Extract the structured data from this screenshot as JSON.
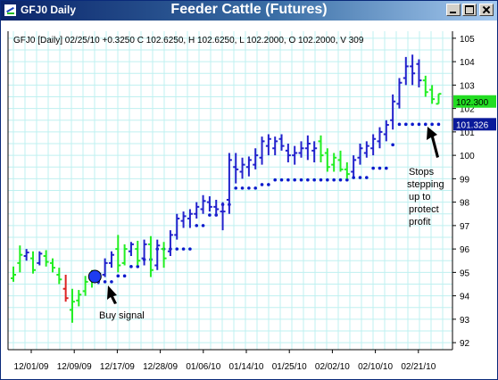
{
  "window": {
    "title": "GFJ0 Daily",
    "chart_title": "Feeder Cattle (Futures)",
    "controls": [
      "minimize",
      "maximize",
      "close"
    ]
  },
  "info_line": "GFJ0 [Daily] 02/25/10  +0.3250 C 102.6250, H 102.6250, L 102.2000, O 102.2000, V 309",
  "price_tags": [
    {
      "label": "102.300",
      "value": 102.3,
      "bg": "#22dd22",
      "fg": "#000000"
    },
    {
      "label": "101.326",
      "value": 101.326,
      "bg": "#0a1a9a",
      "fg": "#ffffff"
    }
  ],
  "annotations": {
    "buy_signal": "Buy signal",
    "stops": [
      "Stops",
      "stepping",
      "up to",
      "protect",
      "profit"
    ]
  },
  "colors": {
    "up": "#2222cc",
    "down": "#22ee22",
    "signal": "#dd2222",
    "stop": "#0a1acc",
    "grid": "#bff0f0"
  },
  "chart_data": {
    "type": "bar",
    "subtype": "ohlc-price-bars-with-trailing-stop",
    "title": "Feeder Cattle (Futures)",
    "symbol": "GFJ0",
    "interval": "Daily",
    "x_tick_labels": [
      "12/01/09",
      "12/09/09",
      "12/17/09",
      "12/28/09",
      "01/06/10",
      "01/14/10",
      "01/25/10",
      "02/02/10",
      "02/10/10",
      "02/21/10"
    ],
    "y_ticks": [
      92,
      93,
      94,
      95,
      96,
      97,
      98,
      99,
      100,
      101,
      102,
      103,
      104,
      105
    ],
    "ylim": [
      91.7,
      105.3
    ],
    "grid": true,
    "bars": [
      {
        "o": 94.75,
        "h": 95.25,
        "l": 94.6,
        "c": 94.9,
        "color": "down"
      },
      {
        "o": 95.4,
        "h": 96.15,
        "l": 95.0,
        "c": 95.75,
        "color": "down"
      },
      {
        "o": 95.7,
        "h": 96.0,
        "l": 95.5,
        "c": 95.85,
        "color": "up"
      },
      {
        "o": 95.6,
        "h": 95.9,
        "l": 94.95,
        "c": 95.1,
        "color": "down"
      },
      {
        "o": 95.4,
        "h": 95.9,
        "l": 95.3,
        "c": 95.8,
        "color": "up"
      },
      {
        "o": 95.7,
        "h": 95.95,
        "l": 95.25,
        "c": 95.45,
        "color": "down"
      },
      {
        "o": 95.4,
        "h": 95.6,
        "l": 95.0,
        "c": 95.2,
        "color": "down"
      },
      {
        "o": 94.9,
        "h": 95.2,
        "l": 94.5,
        "c": 94.7,
        "color": "down"
      },
      {
        "o": 94.3,
        "h": 94.9,
        "l": 93.75,
        "c": 93.9,
        "color": "signal"
      },
      {
        "o": 93.4,
        "h": 94.3,
        "l": 92.85,
        "c": 93.75,
        "color": "down"
      },
      {
        "o": 93.8,
        "h": 94.25,
        "l": 93.55,
        "c": 94.05,
        "color": "down"
      },
      {
        "o": 94.2,
        "h": 94.85,
        "l": 94.0,
        "c": 94.6,
        "color": "down"
      },
      {
        "o": 94.7,
        "h": 95.1,
        "l": 94.35,
        "c": 94.9,
        "color": "down"
      },
      {
        "o": 94.8,
        "h": 95.05,
        "l": 94.5,
        "c": 94.95,
        "color": "up"
      },
      {
        "o": 94.9,
        "h": 95.6,
        "l": 94.8,
        "c": 95.4,
        "color": "up"
      },
      {
        "o": 95.4,
        "h": 95.9,
        "l": 95.2,
        "c": 95.75,
        "color": "up"
      },
      {
        "o": 96.0,
        "h": 96.6,
        "l": 95.0,
        "c": 95.3,
        "color": "down"
      },
      {
        "o": 95.4,
        "h": 96.2,
        "l": 95.3,
        "c": 96.0,
        "color": "down"
      },
      {
        "o": 95.9,
        "h": 96.3,
        "l": 95.7,
        "c": 96.2,
        "color": "up"
      },
      {
        "o": 96.0,
        "h": 96.35,
        "l": 95.3,
        "c": 95.5,
        "color": "down"
      },
      {
        "o": 95.6,
        "h": 96.4,
        "l": 95.3,
        "c": 96.2,
        "color": "up"
      },
      {
        "o": 96.2,
        "h": 96.55,
        "l": 94.8,
        "c": 95.1,
        "color": "down"
      },
      {
        "o": 95.3,
        "h": 96.4,
        "l": 95.1,
        "c": 96.15,
        "color": "up"
      },
      {
        "o": 96.0,
        "h": 96.3,
        "l": 95.2,
        "c": 95.6,
        "color": "down"
      },
      {
        "o": 95.9,
        "h": 96.8,
        "l": 95.7,
        "c": 96.6,
        "color": "up"
      },
      {
        "o": 96.6,
        "h": 97.5,
        "l": 96.4,
        "c": 97.3,
        "color": "up"
      },
      {
        "o": 97.2,
        "h": 97.6,
        "l": 96.9,
        "c": 97.4,
        "color": "up"
      },
      {
        "o": 97.3,
        "h": 97.7,
        "l": 96.9,
        "c": 97.5,
        "color": "up"
      },
      {
        "o": 97.5,
        "h": 98.0,
        "l": 97.3,
        "c": 97.8,
        "color": "up"
      },
      {
        "o": 97.7,
        "h": 98.3,
        "l": 97.5,
        "c": 98.05,
        "color": "up"
      },
      {
        "o": 98.0,
        "h": 98.25,
        "l": 97.6,
        "c": 97.8,
        "color": "up"
      },
      {
        "o": 97.8,
        "h": 98.1,
        "l": 97.4,
        "c": 97.7,
        "color": "up"
      },
      {
        "o": 97.6,
        "h": 98.0,
        "l": 96.8,
        "c": 97.6,
        "color": "up"
      },
      {
        "o": 98.1,
        "h": 100.1,
        "l": 97.5,
        "c": 99.8,
        "color": "up"
      },
      {
        "o": 99.5,
        "h": 100.1,
        "l": 98.8,
        "c": 99.4,
        "color": "up"
      },
      {
        "o": 99.3,
        "h": 99.9,
        "l": 99.0,
        "c": 99.6,
        "color": "up"
      },
      {
        "o": 99.5,
        "h": 99.95,
        "l": 99.1,
        "c": 99.8,
        "color": "up"
      },
      {
        "o": 99.6,
        "h": 100.3,
        "l": 99.4,
        "c": 100.0,
        "color": "up"
      },
      {
        "o": 99.9,
        "h": 100.8,
        "l": 99.6,
        "c": 100.6,
        "color": "up"
      },
      {
        "o": 100.4,
        "h": 100.9,
        "l": 100.0,
        "c": 100.7,
        "color": "up"
      },
      {
        "o": 100.3,
        "h": 100.8,
        "l": 100.0,
        "c": 100.6,
        "color": "up"
      },
      {
        "o": 100.7,
        "h": 100.9,
        "l": 100.2,
        "c": 100.4,
        "color": "up"
      },
      {
        "o": 100.2,
        "h": 100.5,
        "l": 99.7,
        "c": 100.0,
        "color": "up"
      },
      {
        "o": 100.0,
        "h": 100.4,
        "l": 99.6,
        "c": 100.1,
        "color": "up"
      },
      {
        "o": 100.1,
        "h": 100.6,
        "l": 99.9,
        "c": 100.3,
        "color": "up"
      },
      {
        "o": 100.3,
        "h": 100.85,
        "l": 99.8,
        "c": 100.5,
        "color": "up"
      },
      {
        "o": 100.2,
        "h": 100.6,
        "l": 99.7,
        "c": 100.3,
        "color": "up"
      },
      {
        "o": 100.6,
        "h": 100.85,
        "l": 99.7,
        "c": 100.0,
        "color": "down"
      },
      {
        "o": 100.1,
        "h": 100.3,
        "l": 99.3,
        "c": 99.5,
        "color": "down"
      },
      {
        "o": 99.6,
        "h": 100.1,
        "l": 99.3,
        "c": 99.9,
        "color": "down"
      },
      {
        "o": 99.8,
        "h": 100.2,
        "l": 99.3,
        "c": 99.4,
        "color": "down"
      },
      {
        "o": 99.4,
        "h": 99.7,
        "l": 99.0,
        "c": 99.2,
        "color": "down"
      },
      {
        "o": 99.3,
        "h": 100.0,
        "l": 99.1,
        "c": 99.8,
        "color": "up"
      },
      {
        "o": 99.9,
        "h": 100.5,
        "l": 99.6,
        "c": 100.3,
        "color": "up"
      },
      {
        "o": 100.1,
        "h": 100.6,
        "l": 99.9,
        "c": 100.4,
        "color": "up"
      },
      {
        "o": 100.3,
        "h": 100.9,
        "l": 100.0,
        "c": 100.7,
        "color": "up"
      },
      {
        "o": 100.6,
        "h": 101.2,
        "l": 100.3,
        "c": 101.0,
        "color": "up"
      },
      {
        "o": 100.9,
        "h": 101.5,
        "l": 100.6,
        "c": 101.3,
        "color": "up"
      },
      {
        "o": 101.5,
        "h": 102.6,
        "l": 101.1,
        "c": 102.3,
        "color": "up"
      },
      {
        "o": 102.2,
        "h": 103.3,
        "l": 102.0,
        "c": 103.1,
        "color": "up"
      },
      {
        "o": 103.3,
        "h": 104.2,
        "l": 103.0,
        "c": 103.8,
        "color": "up"
      },
      {
        "o": 103.8,
        "h": 104.3,
        "l": 103.0,
        "c": 103.5,
        "color": "up"
      },
      {
        "o": 103.9,
        "h": 104.1,
        "l": 102.9,
        "c": 103.2,
        "color": "up"
      },
      {
        "o": 103.2,
        "h": 103.4,
        "l": 102.5,
        "c": 102.7,
        "color": "down"
      },
      {
        "o": 102.8,
        "h": 103.0,
        "l": 102.2,
        "c": 102.4,
        "color": "down"
      },
      {
        "o": 102.2,
        "h": 102.625,
        "l": 102.2,
        "c": 102.625,
        "color": "down"
      }
    ],
    "trailing_stop": [
      {
        "from": 13,
        "to": 15,
        "value": 94.6
      },
      {
        "from": 16,
        "to": 17,
        "value": 94.85
      },
      {
        "from": 18,
        "to": 19,
        "value": 95.25
      },
      {
        "from": 20,
        "to": 21,
        "value": 95.55
      },
      {
        "from": 22,
        "to": 27,
        "value": 96.0
      },
      {
        "from": 28,
        "to": 29,
        "value": 97.0
      },
      {
        "from": 30,
        "to": 31,
        "value": 97.45
      },
      {
        "from": 32,
        "to": 33,
        "value": 97.9
      },
      {
        "from": 34,
        "to": 37,
        "value": 98.6
      },
      {
        "from": 38,
        "to": 39,
        "value": 98.75
      },
      {
        "from": 40,
        "to": 51,
        "value": 98.95
      },
      {
        "from": 52,
        "to": 54,
        "value": 99.05
      },
      {
        "from": 55,
        "to": 57,
        "value": 99.45
      },
      {
        "from": 58,
        "to": 58,
        "value": 100.45
      },
      {
        "from": 59,
        "to": 65,
        "value": 101.326
      }
    ],
    "buy_signal": {
      "bar": 13,
      "price": 94.9
    }
  }
}
